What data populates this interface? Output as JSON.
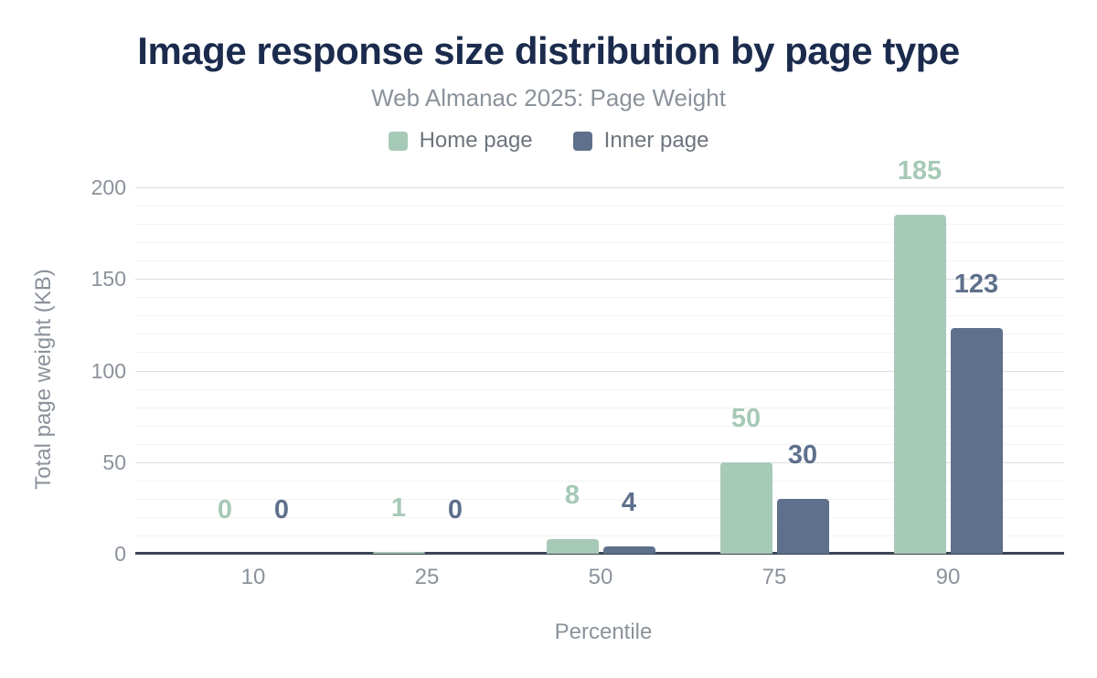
{
  "chart_data": {
    "type": "bar",
    "title": "Image response size distribution by page type",
    "subtitle": "Web Almanac 2025: Page Weight",
    "xlabel": "Percentile",
    "ylabel": "Total page weight (KB)",
    "categories": [
      "10",
      "25",
      "50",
      "75",
      "90"
    ],
    "series": [
      {
        "name": "Home page",
        "color": "#a7c9b7",
        "values": [
          0,
          1,
          8,
          50,
          185
        ]
      },
      {
        "name": "Inner page",
        "color": "#5f708c",
        "values": [
          0,
          0,
          4,
          30,
          123
        ]
      }
    ],
    "ylim": [
      0,
      200
    ],
    "yticks": [
      0,
      50,
      100,
      150,
      200
    ],
    "grid": {
      "major_interval": 50,
      "minor_interval": 10
    },
    "legend_position": "top",
    "value_labels": true
  },
  "colors": {
    "title": "#1b2b4d",
    "subtitle": "#8b929b",
    "axis_text": "#8b929b",
    "legend_text": "#6e747d",
    "axis_line": "#3c4454",
    "grid_major": "#dcdee1",
    "grid_minor": "#f3f3f3",
    "background": "#ffffff"
  }
}
